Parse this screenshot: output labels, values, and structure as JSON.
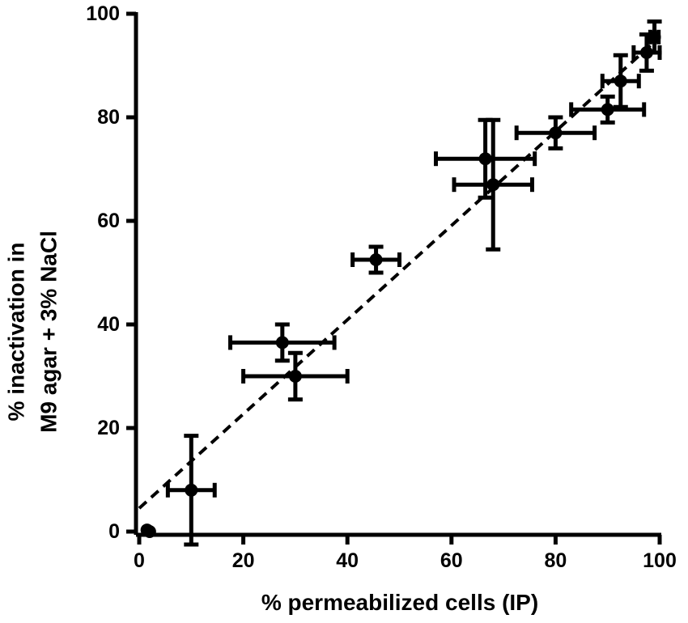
{
  "chart_data": {
    "type": "scatter",
    "title": "",
    "xlabel": "% permeabilized cells (IP)",
    "ylabel_lines": [
      "% inactivation in",
      "M9 agar + 3% NaCl"
    ],
    "xlim": [
      0,
      100
    ],
    "ylim": [
      0,
      100
    ],
    "x_ticks": [
      0,
      20,
      40,
      60,
      80,
      100
    ],
    "y_ticks": [
      0,
      20,
      40,
      60,
      80,
      100
    ],
    "grid": false,
    "legend": "none",
    "colors": {
      "marks": "#000000",
      "background": "#ffffff"
    },
    "points": [
      {
        "x": 1.5,
        "y": 0.3,
        "xerr": 0.3,
        "yerr": 0.3
      },
      {
        "x": 2.0,
        "y": 0.0,
        "xerr": 0.3,
        "yerr": 0.3
      },
      {
        "x": 10.0,
        "y": 8.0,
        "xerr": 4.5,
        "yerr": 10.5
      },
      {
        "x": 27.5,
        "y": 36.5,
        "xerr": 10.0,
        "yerr": 3.5
      },
      {
        "x": 30.0,
        "y": 30.0,
        "xerr": 10.0,
        "yerr": 4.5
      },
      {
        "x": 45.5,
        "y": 52.5,
        "xerr": 4.5,
        "yerr": 2.5
      },
      {
        "x": 66.5,
        "y": 72.0,
        "xerr": 9.5,
        "yerr": 7.5
      },
      {
        "x": 68.0,
        "y": 67.0,
        "xerr": 7.5,
        "yerr": 12.5
      },
      {
        "x": 80.0,
        "y": 77.0,
        "xerr": 7.5,
        "yerr": 3.0
      },
      {
        "x": 90.0,
        "y": 81.5,
        "xerr": 7.0,
        "yerr": 2.5
      },
      {
        "x": 92.5,
        "y": 87.0,
        "xerr": 3.5,
        "yerr": 5.0
      },
      {
        "x": 97.5,
        "y": 92.5,
        "xerr": 2.5,
        "yerr": 3.5
      },
      {
        "x": 99.0,
        "y": 95.5,
        "xerr": 0.8,
        "yerr": 3.0
      }
    ],
    "fit_line": {
      "style": "dashed",
      "x": [
        0,
        100
      ],
      "y": [
        4.5,
        95.5
      ]
    }
  }
}
